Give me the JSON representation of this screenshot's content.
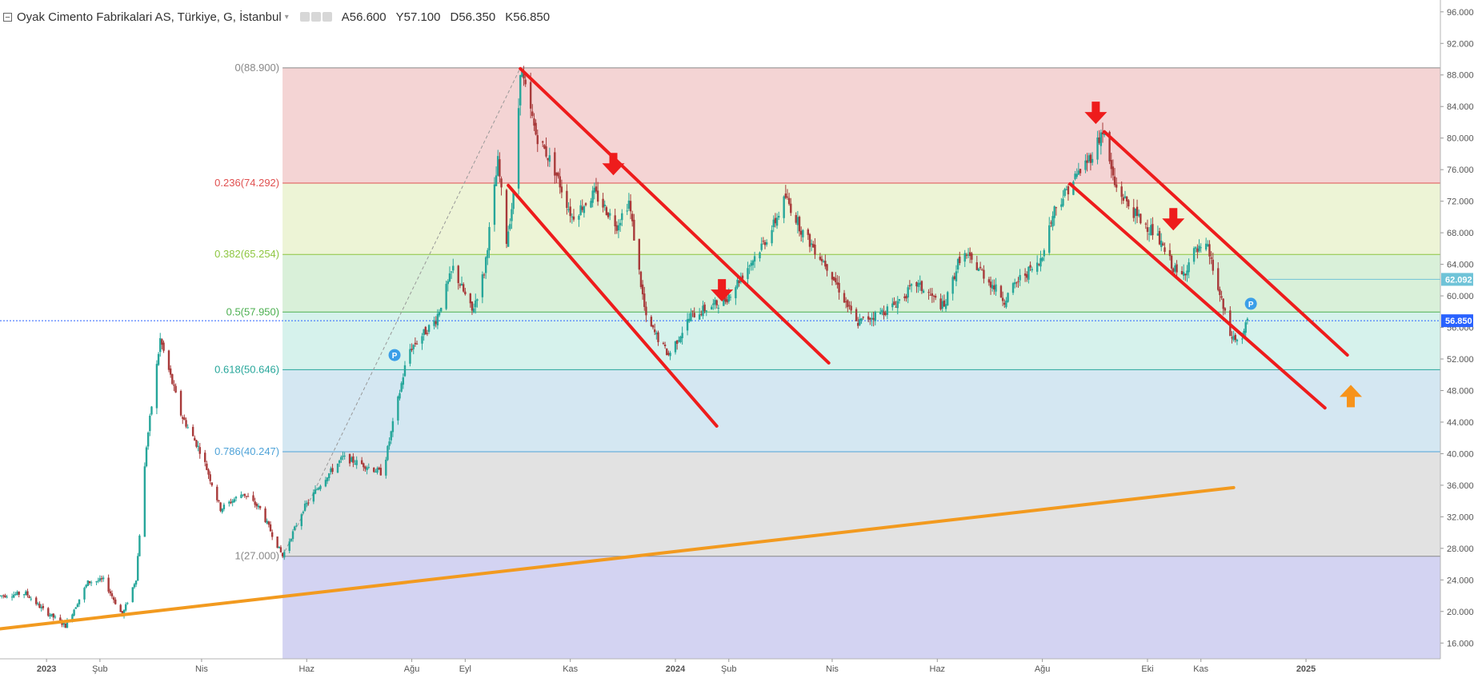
{
  "header": {
    "symbol_title": "Oyak Cimento Fabrikalari AS, Türkiye, G, İstanbul",
    "ohlc": {
      "open": "A56.600",
      "high": "Y57.100",
      "low": "D56.350",
      "close": "K56.850"
    }
  },
  "colors": {
    "up_candle": "#26a69a",
    "down_candle": "#a83a3a",
    "channel_line": "#ee1c1c",
    "trend_line": "#f29a1f",
    "arrow_down": "#ee1c1c",
    "arrow_up": "#f7931a",
    "current_price_badge": "#2962ff",
    "marker_badge": "#3a9ee8"
  },
  "chart_data": {
    "type": "candlestick",
    "y_axis": {
      "min": 14,
      "max": 97.5,
      "ticks": [
        "96.000",
        "92.000",
        "88.000",
        "84.000",
        "80.000",
        "76.000",
        "72.000",
        "68.000",
        "64.000",
        "60.000",
        "56.000",
        "52.000",
        "48.000",
        "44.000",
        "40.000",
        "36.000",
        "32.000",
        "28.000",
        "24.000",
        "20.000",
        "16.000"
      ],
      "price_badges": [
        {
          "label": "62.092",
          "value": 62.092
        },
        {
          "label": "56.850",
          "value": 56.85
        }
      ]
    },
    "x_axis": {
      "start": "2022-12-05",
      "end": "2025-03-20",
      "labels": [
        {
          "date": "2023-01-01",
          "text": "2023"
        },
        {
          "date": "2023-02-01",
          "text": "Şub"
        },
        {
          "date": "2023-04-01",
          "text": "Nis"
        },
        {
          "date": "2023-06-01",
          "text": "Haz"
        },
        {
          "date": "2023-08-01",
          "text": "Ağu"
        },
        {
          "date": "2023-09-01",
          "text": "Eyl"
        },
        {
          "date": "2023-11-01",
          "text": "Kas"
        },
        {
          "date": "2024-01-01",
          "text": "2024"
        },
        {
          "date": "2024-02-01",
          "text": "Şub"
        },
        {
          "date": "2024-04-01",
          "text": "Nis"
        },
        {
          "date": "2024-06-01",
          "text": "Haz"
        },
        {
          "date": "2024-08-01",
          "text": "Ağu"
        },
        {
          "date": "2024-10-01",
          "text": "Eki"
        },
        {
          "date": "2024-11-01",
          "text": "Kas"
        },
        {
          "date": "2025-01-01",
          "text": "2025"
        }
      ]
    },
    "price_path": [
      [
        "2022-12-05",
        22.0
      ],
      [
        "2022-12-20",
        22.3
      ],
      [
        "2022-12-30",
        20.2
      ],
      [
        "2023-01-12",
        18.2
      ],
      [
        "2023-01-25",
        23.7
      ],
      [
        "2023-02-03",
        24.0
      ],
      [
        "2023-02-14",
        19.5
      ],
      [
        "2023-02-22",
        24.2
      ],
      [
        "2023-02-28",
        41.0
      ],
      [
        "2023-03-08",
        54.5
      ],
      [
        "2023-03-20",
        45.0
      ],
      [
        "2023-04-01",
        40.0
      ],
      [
        "2023-04-12",
        33.0
      ],
      [
        "2023-04-25",
        35.0
      ],
      [
        "2023-05-05",
        33.0
      ],
      [
        "2023-05-18",
        27.0
      ],
      [
        "2023-05-30",
        33.0
      ],
      [
        "2023-06-10",
        36.5
      ],
      [
        "2023-06-22",
        39.5
      ],
      [
        "2023-07-05",
        38.5
      ],
      [
        "2023-07-15",
        37.5
      ],
      [
        "2023-07-30",
        53.0
      ],
      [
        "2023-08-15",
        57.0
      ],
      [
        "2023-08-25",
        63.5
      ],
      [
        "2023-09-05",
        58.0
      ],
      [
        "2023-09-12",
        63.0
      ],
      [
        "2023-09-20",
        77.0
      ],
      [
        "2023-09-25",
        67.0
      ],
      [
        "2023-09-30",
        74.0
      ],
      [
        "2023-10-03",
        88.9
      ],
      [
        "2023-10-12",
        80.5
      ],
      [
        "2023-10-22",
        76.5
      ],
      [
        "2023-11-02",
        70.0
      ],
      [
        "2023-11-15",
        73.0
      ],
      [
        "2023-11-28",
        69.0
      ],
      [
        "2023-12-05",
        72.0
      ],
      [
        "2023-12-15",
        57.0
      ],
      [
        "2023-12-28",
        52.5
      ],
      [
        "2024-01-10",
        57.5
      ],
      [
        "2024-01-20",
        58.5
      ],
      [
        "2024-01-30",
        59.5
      ],
      [
        "2024-02-10",
        63.0
      ],
      [
        "2024-02-25",
        68.0
      ],
      [
        "2024-03-05",
        72.5
      ],
      [
        "2024-03-15",
        68.0
      ],
      [
        "2024-03-30",
        63.5
      ],
      [
        "2024-04-15",
        56.5
      ],
      [
        "2024-04-25",
        57.5
      ],
      [
        "2024-05-05",
        58.5
      ],
      [
        "2024-05-20",
        61.5
      ],
      [
        "2024-06-05",
        58.5
      ],
      [
        "2024-06-15",
        65.5
      ],
      [
        "2024-06-25",
        63.5
      ],
      [
        "2024-07-10",
        59.5
      ],
      [
        "2024-07-20",
        62.5
      ],
      [
        "2024-07-30",
        64.0
      ],
      [
        "2024-08-08",
        71.0
      ],
      [
        "2024-08-20",
        75.0
      ],
      [
        "2024-08-30",
        78.0
      ],
      [
        "2024-09-05",
        81.0
      ],
      [
        "2024-09-12",
        74.0
      ],
      [
        "2024-09-25",
        70.0
      ],
      [
        "2024-10-05",
        68.0
      ],
      [
        "2024-10-20",
        62.0
      ],
      [
        "2024-10-28",
        65.5
      ],
      [
        "2024-11-05",
        66.0
      ],
      [
        "2024-11-12",
        60.0
      ],
      [
        "2024-11-18",
        55.0
      ],
      [
        "2024-11-24",
        54.0
      ],
      [
        "2024-11-28",
        56.85
      ]
    ],
    "fibonacci": {
      "start_date": "2023-05-18",
      "end_date": "2025-03-20",
      "levels": [
        {
          "label": "0(88.900)",
          "value": 88.9,
          "color": "#888888",
          "fill": "#f4d4d4"
        },
        {
          "label": "0.236(74.292)",
          "value": 74.292,
          "color": "#e05050",
          "fill": "#edf4d6"
        },
        {
          "label": "0.382(65.254)",
          "value": 65.254,
          "color": "#8dc63f",
          "fill": "#d9f0d9"
        },
        {
          "label": "0.5(57.950)",
          "value": 57.95,
          "color": "#4caf50",
          "fill": "#d6f2ec"
        },
        {
          "label": "0.618(50.646)",
          "value": 50.646,
          "color": "#26a69a",
          "fill": "#d4e7f2"
        },
        {
          "label": "0.786(40.247)",
          "value": 40.247,
          "color": "#4fa3d8",
          "fill": "#e2e2e2"
        },
        {
          "label": "1(27.000)",
          "value": 27.0,
          "color": "#888888",
          "fill": "#d3d3f2"
        }
      ],
      "bottom_fill_to": 14.0
    },
    "fib_diagonal": {
      "from": [
        "2023-05-18",
        27.0
      ],
      "to": [
        "2023-10-03",
        88.9
      ]
    },
    "channels": [
      {
        "upper": {
          "from": [
            "2023-10-03",
            88.8
          ],
          "to": [
            "2024-03-30",
            51.5
          ]
        },
        "lower": {
          "from": [
            "2023-09-26",
            74.0
          ],
          "to": [
            "2024-01-25",
            43.5
          ]
        }
      },
      {
        "upper": {
          "from": [
            "2024-09-06",
            80.8
          ],
          "to": [
            "2025-01-25",
            52.5
          ]
        },
        "lower": {
          "from": [
            "2024-08-17",
            74.2
          ],
          "to": [
            "2025-01-12",
            45.8
          ]
        }
      }
    ],
    "trendline": {
      "from": [
        "2022-12-05",
        17.8
      ],
      "to": [
        "2024-11-20",
        35.7
      ]
    },
    "down_arrows": [
      {
        "date": "2023-11-26",
        "value": 76.5
      },
      {
        "date": "2024-01-28",
        "value": 60.5
      },
      {
        "date": "2024-09-01",
        "value": 83.0
      },
      {
        "date": "2024-10-16",
        "value": 69.5
      }
    ],
    "up_arrows": [
      {
        "date": "2025-01-27",
        "value": 47.5
      }
    ],
    "markers": [
      {
        "date": "2023-07-22",
        "value": 52.5,
        "label": "P"
      },
      {
        "date": "2024-11-30",
        "value": 59.0,
        "label": "P"
      }
    ],
    "h_rays": [
      {
        "from_date": "2024-12-10",
        "value": 62.092
      }
    ]
  }
}
